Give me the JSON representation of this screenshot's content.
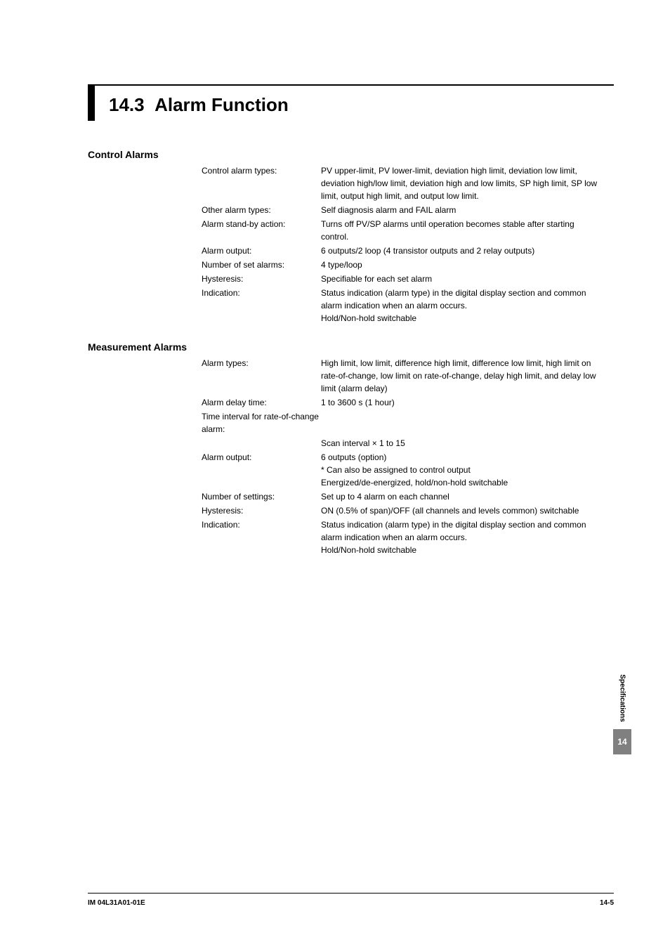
{
  "section": {
    "number": "14.3",
    "title": "Alarm Function"
  },
  "control_alarms": {
    "title": "Control Alarms",
    "rows": [
      {
        "label": "Control alarm types:",
        "value": "PV upper-limit, PV lower-limit, deviation high limit, deviation low limit, deviation high/low limit, deviation high and low limits, SP high limit, SP low limit, output high limit, and output low limit."
      },
      {
        "label": "Other alarm types:",
        "value": "Self diagnosis alarm and FAIL alarm"
      },
      {
        "label": "Alarm stand-by action:",
        "value": "Turns off PV/SP alarms until operation becomes stable after starting control."
      },
      {
        "label": "Alarm output:",
        "value": "6 outputs/2 loop (4 transistor outputs and 2 relay outputs)"
      },
      {
        "label": "Number of set alarms:",
        "value": "4 type/loop"
      },
      {
        "label": "Hysteresis:",
        "value": "Specifiable for each set alarm"
      },
      {
        "label": "Indication:",
        "value": "Status indication (alarm type) in the digital display section and common alarm indication when an alarm occurs.\nHold/Non-hold switchable"
      }
    ]
  },
  "measurement_alarms": {
    "title": "Measurement Alarms",
    "rows": [
      {
        "label": "Alarm types:",
        "value": "High limit, low limit, difference high limit, difference low limit, high limit on rate-of-change, low limit on rate-of-change, delay high limit, and delay low limit (alarm delay)"
      },
      {
        "label": "Alarm delay time:",
        "value": "1 to 3600 s (1 hour)"
      },
      {
        "label": "Time interval for rate-of-change alarm:",
        "value": ""
      },
      {
        "label": "",
        "value": "Scan interval × 1 to 15"
      },
      {
        "label": "Alarm output:",
        "value": "6 outputs (option)\n* Can also be assigned to control output\nEnergized/de-energized, hold/non-hold switchable"
      },
      {
        "label": "Number of settings:",
        "value": "Set up to 4 alarm on each channel"
      },
      {
        "label": "Hysteresis:",
        "value": "ON (0.5% of span)/OFF (all channels and levels common) switchable"
      },
      {
        "label": "Indication:",
        "value": "Status indication (alarm type) in the digital display section and common alarm indication when an alarm occurs.\nHold/Non-hold switchable"
      }
    ]
  },
  "side_tab": {
    "text": "Specifications",
    "number": "14"
  },
  "footer": {
    "left": "IM 04L31A01-01E",
    "right": "14-5"
  }
}
